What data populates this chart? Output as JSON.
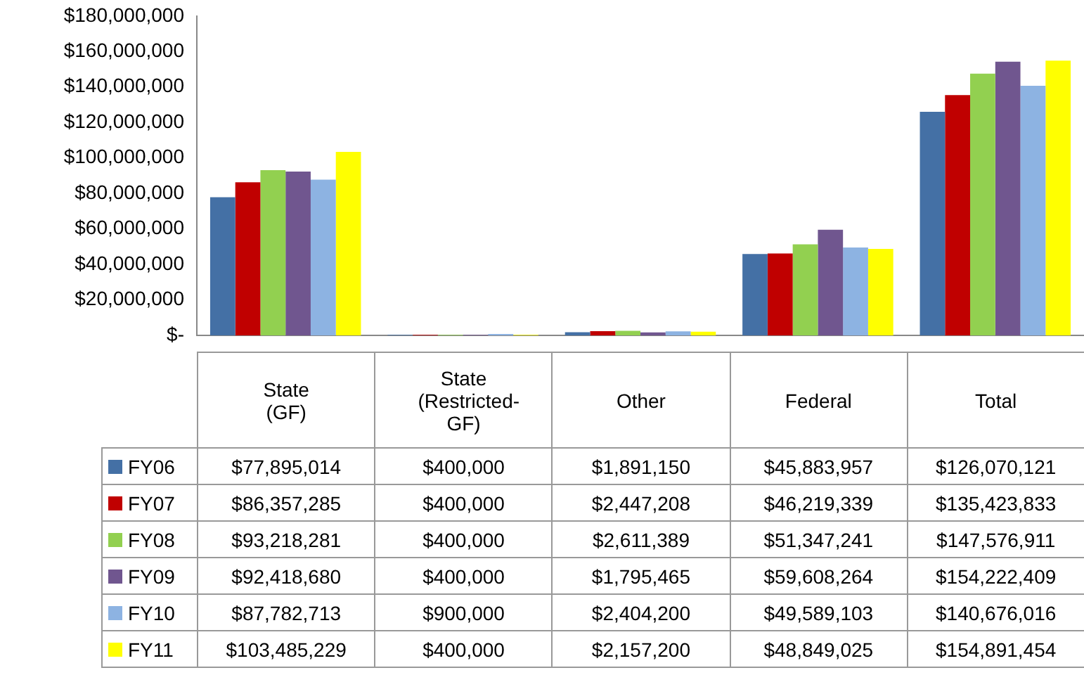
{
  "chart_data": {
    "type": "bar",
    "categories": [
      "State (GF)",
      "State (Restricted-GF)",
      "Other",
      "Federal",
      "Total"
    ],
    "series": [
      {
        "name": "FY06",
        "color": "#4470a5",
        "values": [
          77895014,
          400000,
          1891150,
          45883957,
          126070121
        ],
        "value_labels": [
          "$77,895,014",
          "$400,000",
          "$1,891,150",
          "$45,883,957",
          "$126,070,121"
        ]
      },
      {
        "name": "FY07",
        "color": "#c00000",
        "values": [
          86357285,
          400000,
          2447208,
          46219339,
          135423833
        ],
        "value_labels": [
          "$86,357,285",
          "$400,000",
          "$2,447,208",
          "$46,219,339",
          "$135,423,833"
        ]
      },
      {
        "name": "FY08",
        "color": "#92d050",
        "values": [
          93218281,
          400000,
          2611389,
          51347241,
          147576911
        ],
        "value_labels": [
          "$93,218,281",
          "$400,000",
          "$2,611,389",
          "$51,347,241",
          "$147,576,911"
        ]
      },
      {
        "name": "FY09",
        "color": "#70568f",
        "values": [
          92418680,
          400000,
          1795465,
          59608264,
          154222409
        ],
        "value_labels": [
          "$92,418,680",
          "$400,000",
          "$1,795,465",
          "$59,608,264",
          "$154,222,409"
        ]
      },
      {
        "name": "FY10",
        "color": "#8db3e2",
        "values": [
          87782713,
          900000,
          2404200,
          49589103,
          140676016
        ],
        "value_labels": [
          "$87,782,713",
          "$900,000",
          "$2,404,200",
          "$49,589,103",
          "$140,676,016"
        ]
      },
      {
        "name": "FY11",
        "color": "#ffff00",
        "values": [
          103485229,
          400000,
          2157200,
          48849025,
          154891454
        ],
        "value_labels": [
          "$103,485,229",
          "$400,000",
          "$2,157,200",
          "$48,849,025",
          "$154,891,454"
        ]
      }
    ],
    "ylim": [
      0,
      180000000
    ],
    "yticks": [
      {
        "value": 0,
        "label": "$-"
      },
      {
        "value": 20000000,
        "label": "$20,000,000"
      },
      {
        "value": 40000000,
        "label": "$40,000,000"
      },
      {
        "value": 60000000,
        "label": "$60,000,000"
      },
      {
        "value": 80000000,
        "label": "$80,000,000"
      },
      {
        "value": 100000000,
        "label": "$100,000,000"
      },
      {
        "value": 120000000,
        "label": "$120,000,000"
      },
      {
        "value": 140000000,
        "label": "$140,000,000"
      },
      {
        "value": 160000000,
        "label": "$160,000,000"
      },
      {
        "value": 180000000,
        "label": "$180,000,000"
      }
    ],
    "grid": false,
    "legend": "bottom"
  }
}
